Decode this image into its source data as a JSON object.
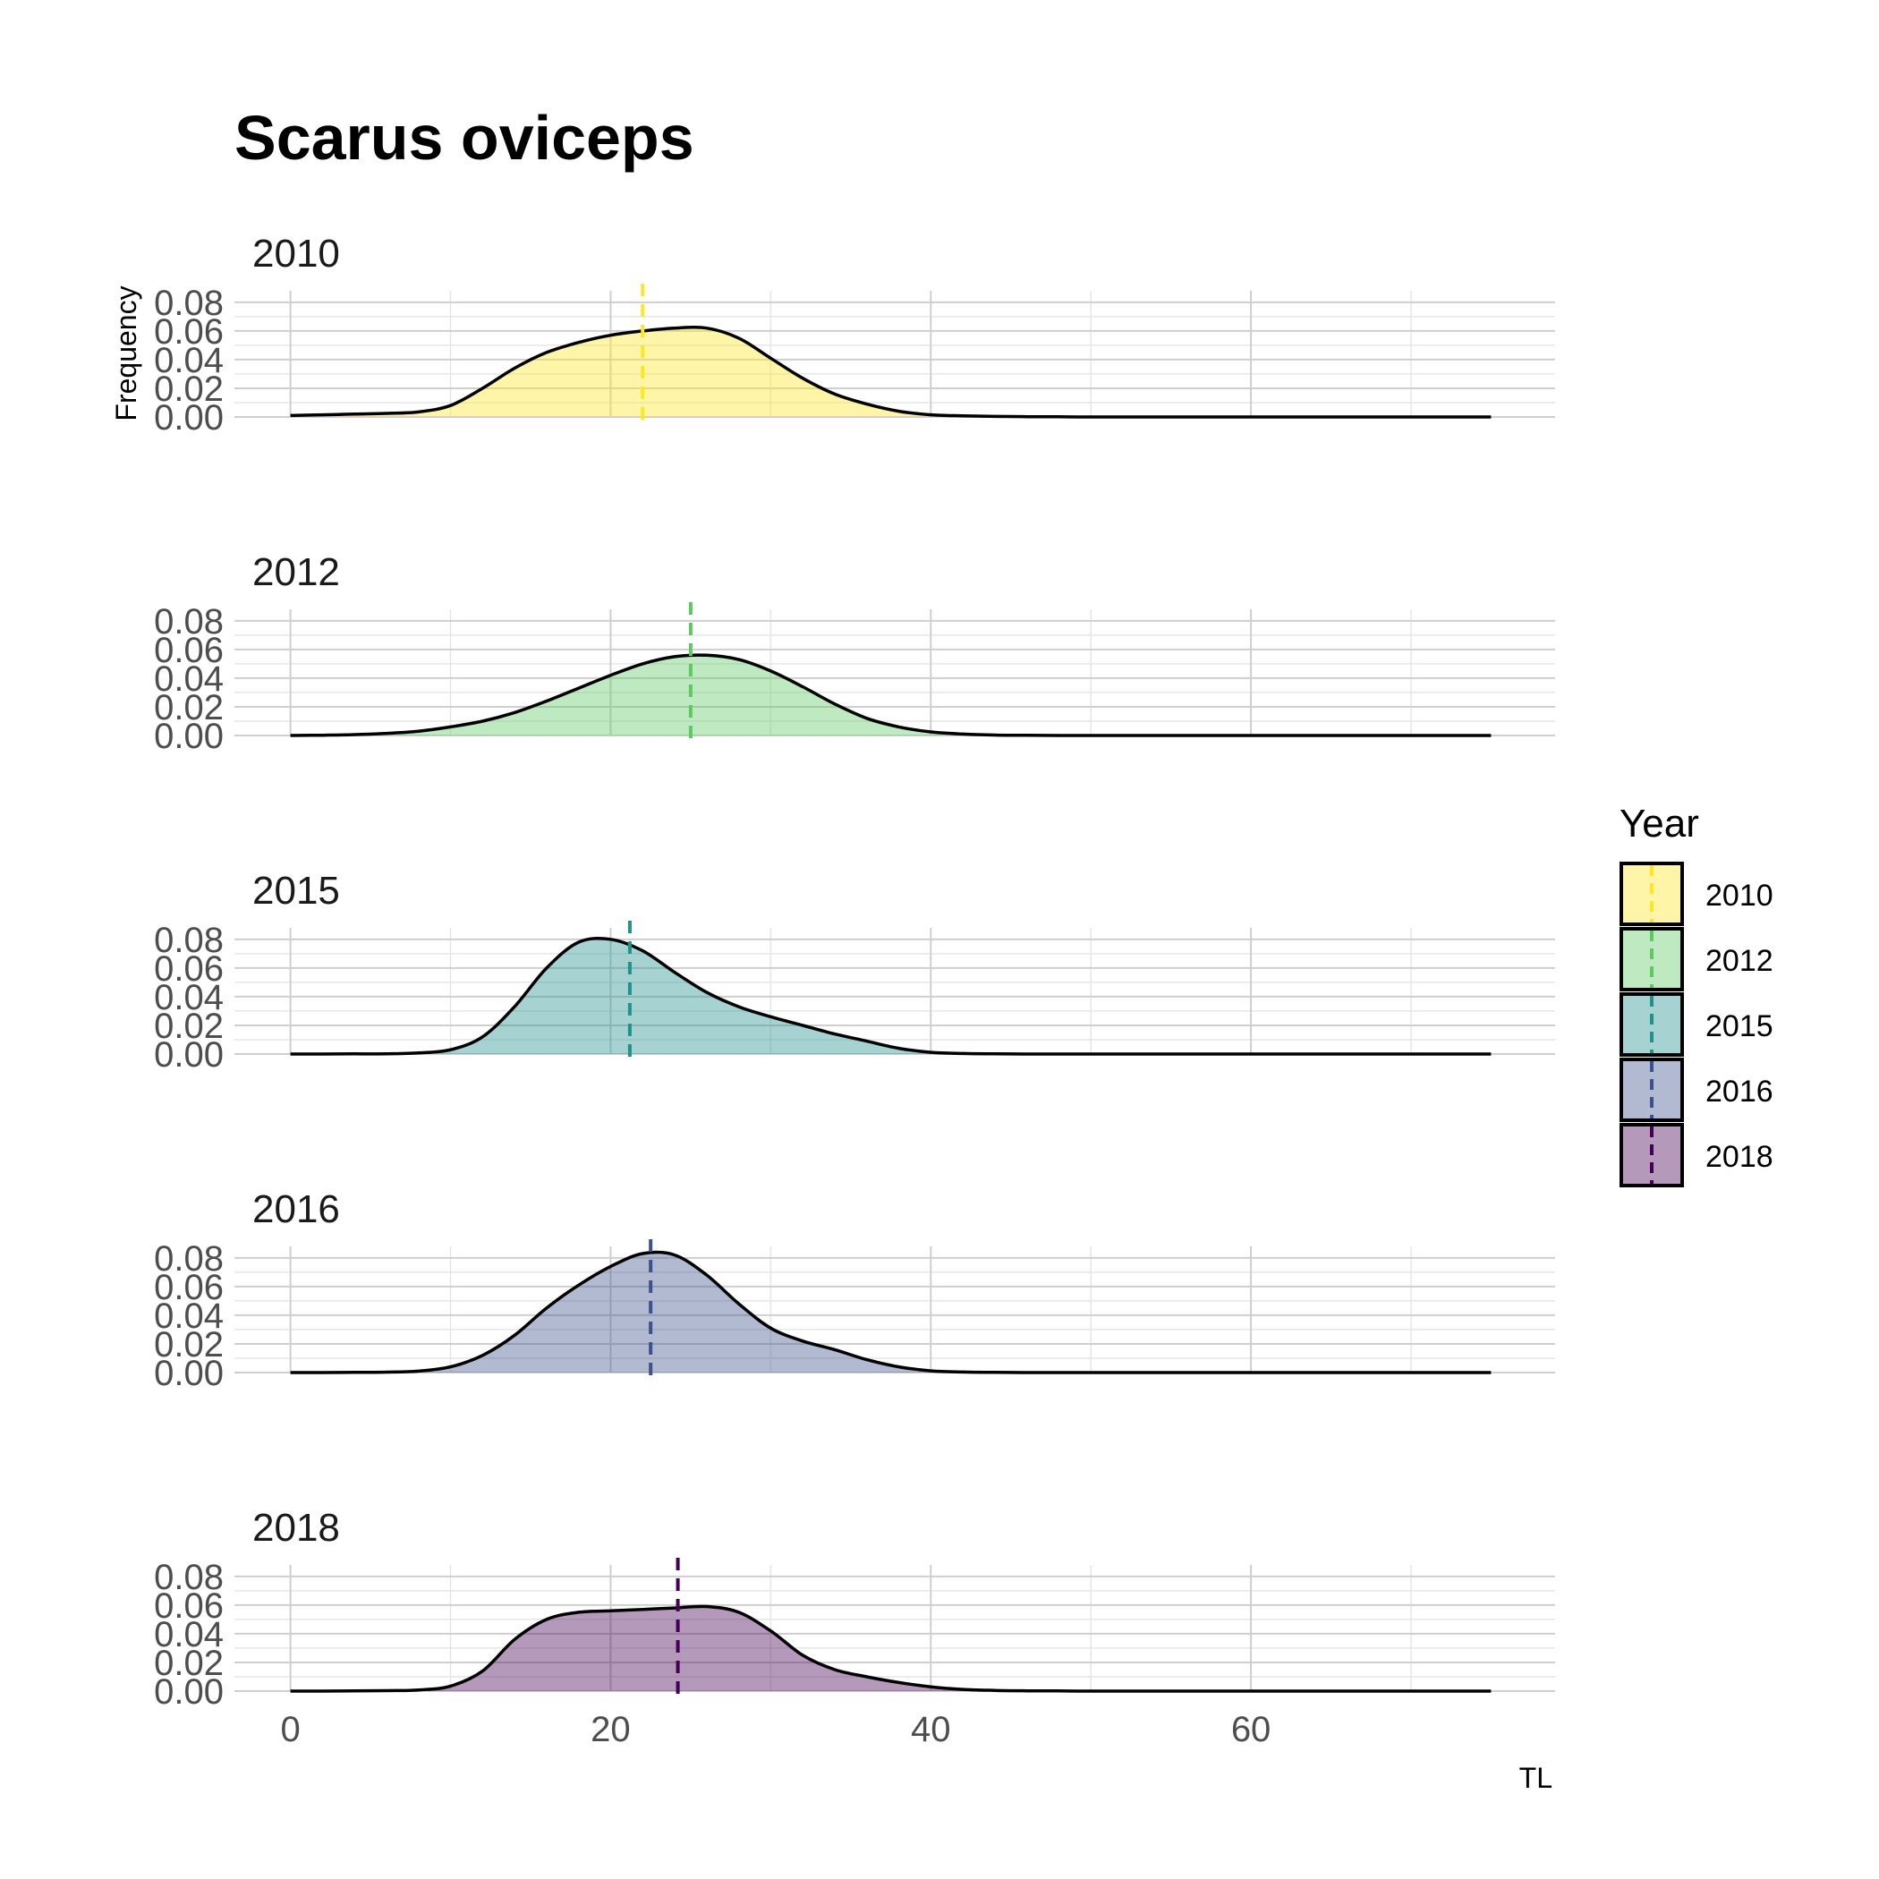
{
  "chart_data": {
    "type": "area",
    "title": "Scarus oviceps",
    "xlabel": "TL",
    "ylabel": "Frequency",
    "xlim": [
      -3.5,
      79
    ],
    "ylim": [
      0,
      0.088
    ],
    "xticks": [
      0,
      20,
      40,
      60
    ],
    "xtick_labels": [
      "0",
      "20",
      "40",
      "60"
    ],
    "yticks": [
      0,
      0.02,
      0.04,
      0.06,
      0.08
    ],
    "ytick_labels": [
      "0.00",
      "0.02",
      "0.04",
      "0.06",
      "0.08"
    ],
    "grid": true,
    "legend": {
      "title": "Year",
      "position": "right"
    },
    "x": [
      0,
      2,
      4,
      6,
      8,
      10,
      12,
      14,
      16,
      18,
      20,
      22,
      24,
      26,
      28,
      30,
      32,
      34,
      36,
      38,
      40,
      42,
      44,
      46,
      48,
      50,
      55,
      60,
      65,
      70,
      75
    ],
    "series": [
      {
        "name": "2010",
        "color": "#FDE725",
        "mean": 22,
        "values": [
          0.001,
          0.0015,
          0.002,
          0.0025,
          0.0035,
          0.008,
          0.02,
          0.034,
          0.045,
          0.052,
          0.057,
          0.06,
          0.062,
          0.062,
          0.055,
          0.041,
          0.027,
          0.016,
          0.009,
          0.004,
          0.0015,
          0.0008,
          0.0004,
          0.0002,
          0.0001,
          0,
          0,
          0,
          0,
          0,
          0
        ]
      },
      {
        "name": "2012",
        "color": "#5EC962",
        "mean": 25,
        "values": [
          0,
          0.0002,
          0.0006,
          0.0015,
          0.003,
          0.006,
          0.01,
          0.016,
          0.024,
          0.033,
          0.042,
          0.05,
          0.055,
          0.056,
          0.053,
          0.045,
          0.034,
          0.022,
          0.012,
          0.006,
          0.0025,
          0.001,
          0.0003,
          0.0001,
          0,
          0,
          0,
          0,
          0,
          0,
          0
        ]
      },
      {
        "name": "2015",
        "color": "#21918C",
        "mean": 21.2,
        "values": [
          0,
          0,
          0.0001,
          0.0002,
          0.0008,
          0.003,
          0.012,
          0.033,
          0.06,
          0.078,
          0.08,
          0.072,
          0.057,
          0.043,
          0.033,
          0.026,
          0.02,
          0.014,
          0.009,
          0.004,
          0.0012,
          0.0004,
          0.0001,
          0,
          0,
          0,
          0,
          0,
          0,
          0,
          0
        ]
      },
      {
        "name": "2016",
        "color": "#3B528B",
        "mean": 22.5,
        "values": [
          0,
          0,
          0.0001,
          0.0003,
          0.001,
          0.004,
          0.012,
          0.026,
          0.045,
          0.061,
          0.074,
          0.083,
          0.082,
          0.068,
          0.048,
          0.031,
          0.022,
          0.016,
          0.009,
          0.004,
          0.0012,
          0.0004,
          0.0001,
          0,
          0,
          0,
          0,
          0,
          0,
          0,
          0
        ]
      },
      {
        "name": "2018",
        "color": "#440154",
        "mean": 24.2,
        "values": [
          0,
          0,
          0.0001,
          0.0003,
          0.0008,
          0.0035,
          0.014,
          0.036,
          0.05,
          0.055,
          0.056,
          0.057,
          0.058,
          0.059,
          0.055,
          0.042,
          0.025,
          0.015,
          0.01,
          0.006,
          0.003,
          0.0012,
          0.0005,
          0.0002,
          0.0001,
          0,
          0,
          0,
          0,
          0,
          0
        ]
      }
    ]
  }
}
